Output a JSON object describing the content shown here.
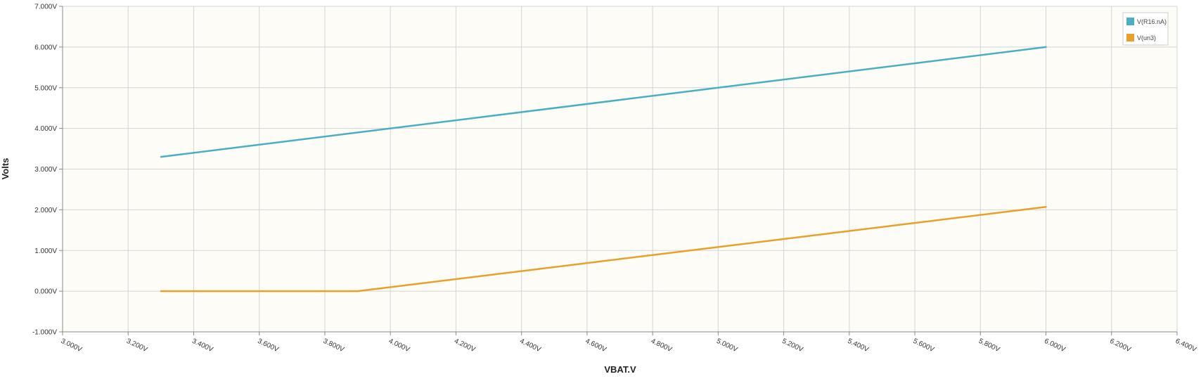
{
  "chart_data": {
    "type": "line",
    "title": "",
    "xlabel": "VBAT.V",
    "ylabel": "Volts",
    "xlim": [
      3.0,
      6.4
    ],
    "ylim": [
      -1.0,
      7.0
    ],
    "x_ticks": [
      3.0,
      3.2,
      3.4,
      3.6,
      3.8,
      4.0,
      4.2,
      4.4,
      4.6,
      4.8,
      5.0,
      5.2,
      5.4,
      5.6,
      5.8,
      6.0,
      6.2,
      6.4
    ],
    "x_tick_labels": [
      "3.000V",
      "3.200V",
      "3.400V",
      "3.600V",
      "3.800V",
      "4.000V",
      "4.200V",
      "4.400V",
      "4.600V",
      "4.800V",
      "5.000V",
      "5.200V",
      "5.400V",
      "5.600V",
      "5.800V",
      "6.000V",
      "6.200V",
      "6.400V"
    ],
    "y_ticks": [
      -1,
      0,
      1,
      2,
      3,
      4,
      5,
      6,
      7
    ],
    "y_tick_labels": [
      "-1.000V",
      "0.000V",
      "1.000V",
      "2.000V",
      "3.000V",
      "4.000V",
      "5.000V",
      "6.000V",
      "7.000V"
    ],
    "grid": true,
    "legend_position": "top-right",
    "background_color": "#fdfcf6",
    "grid_color": "#d4d4d4",
    "axis_color": "#888888",
    "series": [
      {
        "name": "V(R16.nA)",
        "color": "#4aaec4",
        "x": [
          3.3,
          6.0
        ],
        "y": [
          3.3,
          6.0
        ]
      },
      {
        "name": "V(un3)",
        "color": "#e8a029",
        "x": [
          3.3,
          3.9,
          6.0
        ],
        "y": [
          0.0,
          0.0,
          2.07
        ]
      }
    ]
  }
}
